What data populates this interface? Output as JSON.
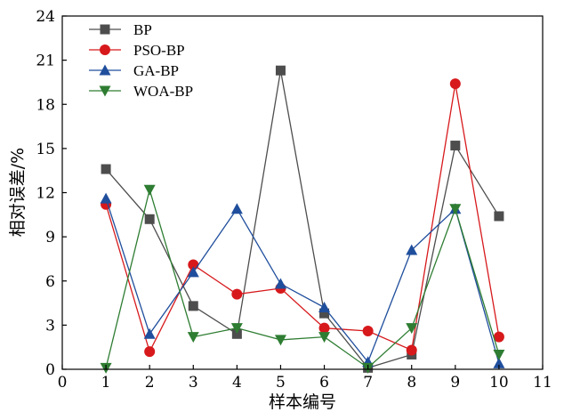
{
  "chart_data": {
    "type": "line",
    "xlabel": "样本编号",
    "ylabel": "相对误差/%",
    "xlim": [
      0,
      11
    ],
    "ylim": [
      0,
      24
    ],
    "xticks": [
      "0",
      "1",
      "2",
      "3",
      "4",
      "5",
      "6",
      "7",
      "8",
      "9",
      "10",
      "11"
    ],
    "yticks": [
      "0",
      "3",
      "6",
      "9",
      "12",
      "15",
      "18",
      "21",
      "24"
    ],
    "grid": false,
    "legend_position": "top-left",
    "x": [
      1,
      2,
      3,
      4,
      5,
      6,
      7,
      8,
      9,
      10
    ],
    "series": [
      {
        "name": "BP",
        "color": "#4d4d4d",
        "marker": "square",
        "values": [
          13.6,
          10.2,
          4.3,
          2.4,
          20.3,
          3.8,
          0.1,
          1.0,
          15.2,
          10.4
        ]
      },
      {
        "name": "PSO-BP",
        "color": "#d7191c",
        "marker": "circle",
        "values": [
          11.2,
          1.2,
          7.1,
          5.1,
          5.5,
          2.8,
          2.6,
          1.3,
          19.4,
          2.2
        ]
      },
      {
        "name": "GA-BP",
        "color": "#1f4e9c",
        "marker": "triangle-up",
        "values": [
          11.6,
          2.4,
          6.6,
          10.9,
          5.8,
          4.2,
          0.5,
          8.1,
          10.9,
          0.4
        ]
      },
      {
        "name": "WOA-BP",
        "color": "#2e7d32",
        "marker": "triangle-down",
        "values": [
          0.1,
          12.2,
          2.2,
          2.8,
          2.0,
          2.2,
          0.1,
          2.8,
          10.9,
          1.0
        ]
      }
    ]
  }
}
